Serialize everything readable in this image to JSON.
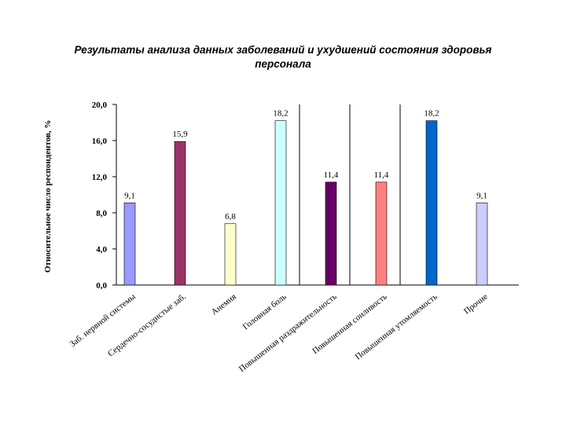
{
  "chart_data": {
    "type": "bar",
    "title_line1": "Результаты анализа данных заболеваний и ухудшений состояния здоровья",
    "title_line2": "персонала",
    "ylabel": "Относительное число респондентов, %",
    "ylim": [
      0,
      20
    ],
    "yticks": [
      "0,0",
      "4,0",
      "8,0",
      "12,0",
      "16,0",
      "20,0"
    ],
    "categories": [
      "Заб. нервной системы",
      "Сердечно-сосудистые заб.",
      "Анемия",
      "Головная боль",
      "Повышенная раздражительность",
      "Повышенная сонливость",
      "Повышенная утомляемость",
      "Прочие"
    ],
    "values": [
      9.1,
      15.9,
      6.8,
      18.2,
      11.4,
      11.4,
      18.2,
      9.1
    ],
    "value_labels": [
      "9,1",
      "15,9",
      "6,8",
      "18,2",
      "11,4",
      "11,4",
      "18,2",
      "9,1"
    ],
    "colors": [
      "#9999ff",
      "#993366",
      "#ffffcc",
      "#ccffff",
      "#660066",
      "#ff8080",
      "#0066cc",
      "#ccccff"
    ]
  }
}
